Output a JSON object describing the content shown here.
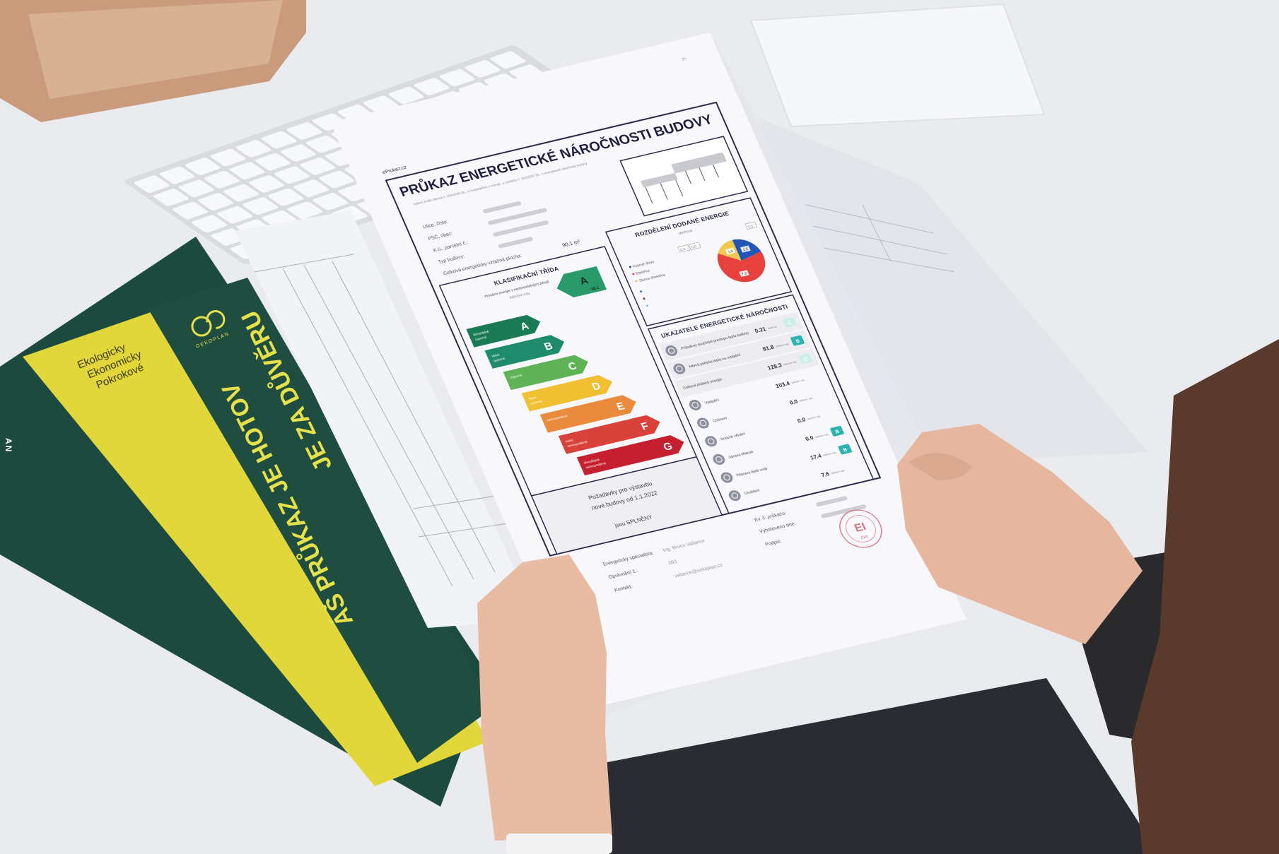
{
  "scene": {
    "desk_color": "#e9ebee",
    "folder_green": "#1d4a3e",
    "folder_yellow": "#e1d63a",
    "skin": "#e8bba3"
  },
  "folder": {
    "logo_brand": "OEKOPLAN",
    "slogan": [
      "Ekologicky",
      "Ekonomicky",
      "Pokrokové"
    ],
    "headline_1": "ÁŠ PRŮKAZ JE HOTOV",
    "headline_2": "JE ZA DŮVĚRU",
    "back_cover_text": "AN"
  },
  "certificate": {
    "page_number": "20",
    "source": "ePrukaz.cz",
    "title": "PRŮKAZ ENERGETICKÉ NÁROČNOSTI BUDOVY",
    "subtitle": "vydaný podle zákona č. 406/2000 Sb., o hospodaření s energií, a vyhlášky č. 264/2020 Sb., o energetické náročnosti budovy",
    "info": {
      "labels": [
        "Ulice, číslo:",
        "PSČ, obec:",
        "K.ú., parcelní č.:",
        "Typ budovy:",
        "Celková energeticky vztažná plocha:"
      ],
      "floor_area": "90.1 m²"
    },
    "classification": {
      "title": "KLASIFIKAČNÍ TŘÍDA",
      "subtitle": "Primární energie z neobnovitelných zdrojů",
      "unit": "kWh/(m²·rok)",
      "result_class": "A",
      "result_value": "58.1",
      "classes": [
        {
          "letter": "A",
          "label": [
            "Mimořádně",
            "úsporná"
          ],
          "color": "#1a7a55"
        },
        {
          "letter": "B",
          "label": [
            "Velmi",
            "úsporná"
          ],
          "color": "#1e8c6c"
        },
        {
          "letter": "C",
          "label": [
            "Úsporná",
            ""
          ],
          "color": "#5fb356"
        },
        {
          "letter": "D",
          "label": [
            "Méně",
            "úsporná"
          ],
          "color": "#f1bf32"
        },
        {
          "letter": "E",
          "label": [
            "Nehospodárná",
            ""
          ],
          "color": "#ea8a3c"
        },
        {
          "letter": "F",
          "label": [
            "Velmi",
            "nehospodárná"
          ],
          "color": "#d8423a"
        },
        {
          "letter": "G",
          "label": [
            "Mimořádně",
            "nehospodárná"
          ],
          "color": "#c51f30"
        }
      ]
    },
    "requirements": {
      "line_1": "Požadavky pro výstavbu",
      "line_2": "nové budovy od 1.1.2022",
      "line_3": "jsou SPLNĚNY"
    },
    "energy_split": {
      "title": "ROZDĚLENÍ DODANÉ ENERGIE",
      "unit": "MWh/rok",
      "legend": [
        {
          "label": "Kusové dřevo",
          "color": "#1f56b8",
          "value": 2.5
        },
        {
          "label": "Elektřina",
          "color": "#e8403c",
          "value": 7.2
        },
        {
          "label": "Slunce /Elektřina",
          "color": "#f2c94c",
          "value": 1.8
        }
      ],
      "zero_values": [
        "0.0",
        "0.0",
        "0.0"
      ]
    },
    "indicators": {
      "title": "UKAZATELE ENERGETICKÉ NÁROČNOSTI",
      "rows": [
        {
          "label": "Průměrný součinitel prostupu tepla budovy",
          "value": "0.21",
          "unit": "W/(m²·K)",
          "badge": "C",
          "icon": "house-icon"
        },
        {
          "label": "Měrná potřeba tepla na vytápění",
          "value": "81.8",
          "unit": "kWh/(m²·rok)",
          "badge": "B",
          "icon": "heating-icon"
        },
        {
          "label": "Celková dodaná energie",
          "value": "128.3",
          "unit": "kWh/(m²·rok)",
          "badge": "C",
          "icon": ""
        },
        {
          "label": "Vytápění",
          "value": "103.4",
          "unit": "kWh/(m²·rok)",
          "badge": "",
          "icon": "radiator-icon"
        },
        {
          "label": "Chlazení",
          "value": "0.0",
          "unit": "kWh/(m²·rok)",
          "badge": "",
          "icon": "cooling-icon"
        },
        {
          "label": "Nucené větrání",
          "value": "0.0",
          "unit": "kWh/(m²·rok)",
          "badge": "",
          "icon": "fan-icon"
        },
        {
          "label": "Úprava vlhkosti",
          "value": "0.0",
          "unit": "kWh/(m²·rok)",
          "badge": "B",
          "icon": "humidity-icon"
        },
        {
          "label": "Příprava teplé vody",
          "value": "17.4",
          "unit": "kWh/(m²·rok)",
          "badge": "B",
          "icon": "hot-water-icon"
        },
        {
          "label": "Osvětlení",
          "value": "7.6",
          "unit": "kWh/(m²·rok)",
          "badge": "",
          "icon": "lightbulb-icon"
        }
      ]
    },
    "footer": {
      "specialist_label": "Energetický specialista:",
      "specialist_name": "Ing. Bruno Vallance",
      "license_label": "Oprávnění č.:",
      "license_value": "093",
      "contact_label": "Kontakt:",
      "contact_value": "vallance@oekoplan.cz",
      "cert_no_label": "Ev. č. průkazu:",
      "issued_label": "Vyhotoveno dne:",
      "signature_label": "Podpis:",
      "stamp_initials": "EI",
      "stamp_number": "093"
    }
  }
}
